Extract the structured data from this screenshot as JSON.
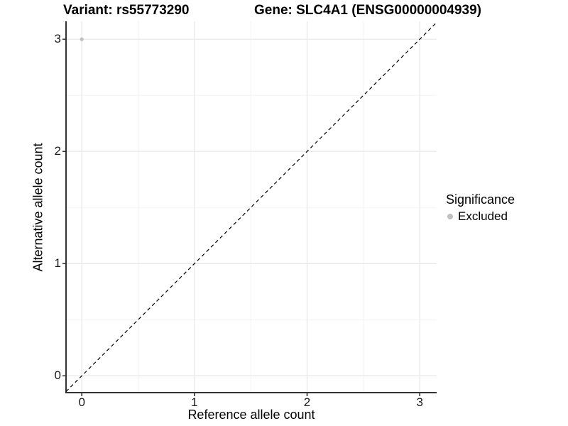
{
  "title": {
    "left": "Variant: rs55773290",
    "right": "Gene: SLC4A1 (ENSG00000004939)"
  },
  "axes": {
    "x": {
      "title": "Reference allele count"
    },
    "y": {
      "title": "Alternative allele count"
    }
  },
  "legend": {
    "title": "Significance",
    "items": [
      {
        "label": "Excluded",
        "color": "#c0c0c0"
      }
    ]
  },
  "colors": {
    "background": "#ffffff",
    "grid_major": "#e8e8e8",
    "grid_minor": "#f2f2f2",
    "axis_line": "#333333",
    "tick_mark": "#333333",
    "reference_line": "#000000",
    "point": "#c0c0c0",
    "text": "#000000"
  },
  "chart_data": {
    "type": "scatter",
    "title": "Variant: rs55773290 / Gene: SLC4A1 (ENSG00000004939)",
    "xlabel": "Reference allele count",
    "ylabel": "Alternative allele count",
    "xlim": [
      -0.14,
      3.15
    ],
    "ylim": [
      -0.15,
      3.16
    ],
    "x_ticks": [
      0,
      1,
      2,
      3
    ],
    "y_ticks": [
      0,
      1,
      2,
      3
    ],
    "x_minor_ticks": [
      0.5,
      1.5,
      2.5
    ],
    "y_minor_ticks": [
      0.5,
      1.5,
      2.5
    ],
    "grid": "major+minor",
    "legend_position": "right",
    "series": [
      {
        "name": "Excluded",
        "color": "#c0c0c0",
        "points": [
          {
            "x": 0,
            "y": 3
          }
        ]
      }
    ],
    "reference_line": {
      "slope": 1,
      "intercept": 0,
      "style": "dashed"
    }
  }
}
